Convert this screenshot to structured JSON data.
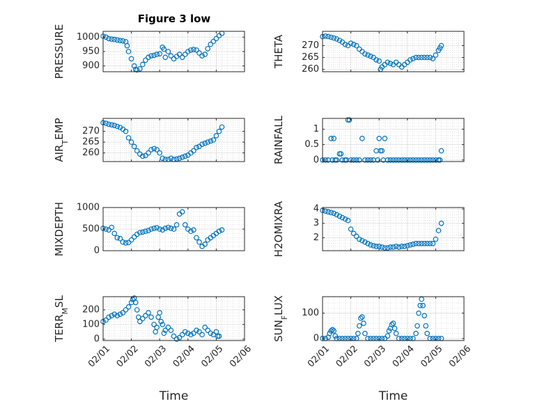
{
  "chart_data": [
    {
      "type": "scatter",
      "title": "Figure 3 low",
      "ylabel": "PRESSURE",
      "xlabel": "",
      "x_ticks": [
        "02/01",
        "02/02",
        "02/03",
        "02/04",
        "02/05",
        "02/06"
      ],
      "show_x_tick_labels": false,
      "xlim": [
        0,
        5
      ],
      "ylim": [
        880,
        1020
      ],
      "yticks": [
        900,
        950,
        1000
      ],
      "grid": true,
      "color": "#0072BD",
      "series": [
        {
          "x": [
            0.0,
            0.1,
            0.2,
            0.3,
            0.4,
            0.5,
            0.6,
            0.7,
            0.8,
            0.85,
            0.9,
            1.0,
            1.1,
            1.15,
            1.2,
            1.3,
            1.4,
            1.5,
            1.6,
            1.7,
            1.8,
            1.9,
            2.0,
            2.1,
            2.15,
            2.2,
            2.3,
            2.4,
            2.5,
            2.6,
            2.7,
            2.8,
            2.9,
            3.0,
            3.1,
            3.2,
            3.3,
            3.4,
            3.5,
            3.6,
            3.7,
            3.8,
            3.9,
            4.0,
            4.1,
            4.2
          ],
          "y": [
            1003,
            1000,
            995,
            993,
            992,
            990,
            988,
            987,
            984,
            970,
            950,
            925,
            900,
            888,
            886,
            890,
            905,
            920,
            930,
            935,
            937,
            940,
            942,
            965,
            958,
            930,
            950,
            935,
            925,
            933,
            940,
            930,
            940,
            950,
            955,
            957,
            955,
            945,
            935,
            940,
            960,
            975,
            985,
            995,
            1005,
            1013
          ]
        }
      ]
    },
    {
      "type": "scatter",
      "title": "",
      "ylabel": "THETA",
      "xlabel": "",
      "x_ticks": [
        "02/01",
        "02/02",
        "02/03",
        "02/04",
        "02/05",
        "02/06"
      ],
      "show_x_tick_labels": false,
      "xlim": [
        0,
        5
      ],
      "ylim": [
        259,
        276
      ],
      "yticks": [
        260,
        265,
        270
      ],
      "grid": true,
      "color": "#0072BD",
      "series": [
        {
          "x": [
            0.0,
            0.1,
            0.2,
            0.3,
            0.4,
            0.5,
            0.6,
            0.7,
            0.8,
            0.9,
            1.0,
            1.1,
            1.2,
            1.3,
            1.4,
            1.5,
            1.6,
            1.7,
            1.8,
            1.9,
            2.0,
            2.05,
            2.1,
            2.2,
            2.3,
            2.4,
            2.5,
            2.6,
            2.7,
            2.8,
            2.9,
            3.0,
            3.1,
            3.2,
            3.3,
            3.4,
            3.5,
            3.6,
            3.7,
            3.8,
            3.9,
            4.0,
            4.1,
            4.15,
            4.2
          ],
          "y": [
            273.8,
            274,
            273.8,
            273.5,
            273.2,
            272.8,
            272.2,
            271.5,
            270.5,
            270,
            271,
            270.5,
            270,
            268.5,
            267.5,
            266.5,
            266,
            265.5,
            265,
            264,
            263.5,
            260,
            261,
            262,
            263,
            262.5,
            262,
            263,
            262,
            261,
            262,
            263,
            264,
            264.5,
            265,
            265,
            265,
            265,
            265,
            265,
            264.5,
            266,
            268,
            269,
            270
          ]
        }
      ]
    },
    {
      "type": "scatter",
      "title": "",
      "ylabel": "AIR_TEMP",
      "xlabel": "",
      "x_ticks": [
        "02/01",
        "02/02",
        "02/03",
        "02/04",
        "02/05",
        "02/06"
      ],
      "show_x_tick_labels": false,
      "xlim": [
        0,
        5
      ],
      "ylim": [
        256,
        276
      ],
      "yticks": [
        260,
        265,
        270
      ],
      "grid": true,
      "color": "#0072BD",
      "series": [
        {
          "x": [
            0.0,
            0.1,
            0.2,
            0.3,
            0.4,
            0.5,
            0.6,
            0.7,
            0.8,
            0.9,
            1.0,
            1.1,
            1.2,
            1.3,
            1.4,
            1.5,
            1.6,
            1.7,
            1.8,
            1.9,
            2.0,
            2.1,
            2.2,
            2.3,
            2.4,
            2.5,
            2.6,
            2.7,
            2.8,
            2.9,
            3.0,
            3.1,
            3.2,
            3.3,
            3.4,
            3.5,
            3.6,
            3.7,
            3.8,
            3.9,
            4.0,
            4.1,
            4.2
          ],
          "y": [
            274,
            273.7,
            273.3,
            273,
            272.7,
            272.3,
            271.8,
            271,
            270,
            267,
            265,
            263,
            261,
            259.5,
            258.5,
            258.8,
            260,
            261.5,
            262,
            261.5,
            260,
            257.5,
            257,
            257,
            257.5,
            257,
            257.2,
            257.5,
            258,
            258.5,
            259,
            260,
            261,
            262.5,
            263,
            264,
            264.5,
            265,
            265.5,
            266,
            268,
            270,
            272
          ]
        }
      ]
    },
    {
      "type": "scatter",
      "title": "",
      "ylabel": "RAINFALL",
      "xlabel": "",
      "x_ticks": [
        "02/01",
        "02/02",
        "02/03",
        "02/04",
        "02/05",
        "02/06"
      ],
      "show_x_tick_labels": false,
      "xlim": [
        0,
        5
      ],
      "ylim": [
        -0.05,
        1.35
      ],
      "yticks": [
        0,
        0.5,
        1
      ],
      "grid": true,
      "color": "#0072BD",
      "series": [
        {
          "x": [
            0.0,
            0.1,
            0.2,
            0.3,
            0.35,
            0.4,
            0.45,
            0.5,
            0.6,
            0.65,
            0.7,
            0.8,
            0.85,
            0.9,
            0.95,
            1.0,
            1.1,
            1.2,
            1.3,
            1.4,
            1.5,
            1.6,
            1.7,
            1.8,
            1.9,
            1.95,
            2.0,
            2.05,
            2.1,
            2.15,
            2.2,
            2.3,
            2.4,
            2.5,
            2.6,
            2.7,
            2.8,
            2.9,
            3.0,
            3.1,
            3.2,
            3.3,
            3.4,
            3.5,
            3.6,
            3.7,
            3.8,
            3.9,
            4.0,
            4.1,
            4.15,
            4.2
          ],
          "y": [
            0,
            0,
            0,
            0.7,
            0,
            0.7,
            0,
            0,
            0.2,
            0.2,
            0,
            0,
            0,
            1.3,
            1.3,
            0,
            0,
            0,
            0,
            0.7,
            0,
            0,
            0,
            0,
            0.3,
            0,
            0.7,
            0.3,
            0.3,
            0,
            0.7,
            0,
            0,
            0,
            0,
            0,
            0,
            0,
            0,
            0,
            0,
            0,
            0,
            0,
            0,
            0,
            0,
            0,
            0,
            0,
            0,
            0.3
          ]
        }
      ]
    },
    {
      "type": "scatter",
      "title": "",
      "ylabel": "MIXDEPTH",
      "xlabel": "",
      "x_ticks": [
        "02/01",
        "02/02",
        "02/03",
        "02/04",
        "02/05",
        "02/06"
      ],
      "show_x_tick_labels": false,
      "xlim": [
        0,
        5
      ],
      "ylim": [
        0,
        1000
      ],
      "yticks": [
        0,
        500,
        1000
      ],
      "grid": true,
      "color": "#0072BD",
      "series": [
        {
          "x": [
            0.0,
            0.1,
            0.2,
            0.3,
            0.4,
            0.5,
            0.6,
            0.7,
            0.8,
            0.9,
            1.0,
            1.1,
            1.2,
            1.3,
            1.4,
            1.5,
            1.6,
            1.7,
            1.8,
            1.9,
            2.0,
            2.1,
            2.2,
            2.3,
            2.4,
            2.5,
            2.6,
            2.7,
            2.8,
            2.9,
            3.0,
            3.1,
            3.2,
            3.3,
            3.4,
            3.5,
            3.6,
            3.7,
            3.8,
            3.9,
            4.0,
            4.1,
            4.2
          ],
          "y": [
            520,
            500,
            480,
            540,
            400,
            300,
            280,
            200,
            180,
            190,
            250,
            320,
            380,
            420,
            430,
            450,
            470,
            500,
            520,
            530,
            500,
            480,
            520,
            540,
            520,
            500,
            600,
            850,
            900,
            600,
            500,
            450,
            480,
            300,
            200,
            100,
            150,
            250,
            300,
            350,
            400,
            450,
            480
          ]
        }
      ]
    },
    {
      "type": "scatter",
      "title": "",
      "ylabel": "H2OMIXRA",
      "xlabel": "",
      "x_ticks": [
        "02/01",
        "02/02",
        "02/03",
        "02/04",
        "02/05",
        "02/06"
      ],
      "show_x_tick_labels": false,
      "xlim": [
        0,
        5
      ],
      "ylim": [
        1.1,
        4.1
      ],
      "yticks": [
        2,
        3,
        4
      ],
      "grid": true,
      "color": "#0072BD",
      "series": [
        {
          "x": [
            0.0,
            0.1,
            0.2,
            0.3,
            0.4,
            0.5,
            0.6,
            0.7,
            0.8,
            0.9,
            1.0,
            1.1,
            1.2,
            1.3,
            1.4,
            1.5,
            1.6,
            1.7,
            1.8,
            1.9,
            2.0,
            2.1,
            2.2,
            2.3,
            2.4,
            2.5,
            2.6,
            2.7,
            2.8,
            2.9,
            3.0,
            3.1,
            3.2,
            3.3,
            3.4,
            3.5,
            3.6,
            3.7,
            3.8,
            3.9,
            4.0,
            4.1,
            4.2
          ],
          "y": [
            3.9,
            3.85,
            3.8,
            3.75,
            3.7,
            3.6,
            3.5,
            3.4,
            3.3,
            3.2,
            2.6,
            2.3,
            2.1,
            1.9,
            1.8,
            1.7,
            1.6,
            1.5,
            1.45,
            1.4,
            1.4,
            1.35,
            1.3,
            1.3,
            1.35,
            1.35,
            1.4,
            1.35,
            1.4,
            1.4,
            1.45,
            1.5,
            1.55,
            1.6,
            1.6,
            1.6,
            1.6,
            1.6,
            1.6,
            1.6,
            1.9,
            2.5,
            3.0
          ]
        }
      ]
    },
    {
      "type": "scatter",
      "title": "",
      "ylabel": "TERR_MSL",
      "xlabel": "Time",
      "x_ticks": [
        "02/01",
        "02/02",
        "02/03",
        "02/04",
        "02/05",
        "02/06"
      ],
      "show_x_tick_labels": true,
      "xlim": [
        0,
        5
      ],
      "ylim": [
        -10,
        290
      ],
      "yticks": [
        0,
        100,
        200
      ],
      "grid": true,
      "color": "#0072BD",
      "series": [
        {
          "x": [
            0.0,
            0.1,
            0.2,
            0.3,
            0.4,
            0.5,
            0.6,
            0.7,
            0.8,
            0.9,
            1.0,
            1.05,
            1.1,
            1.15,
            1.2,
            1.25,
            1.3,
            1.4,
            1.5,
            1.6,
            1.7,
            1.8,
            1.85,
            1.9,
            1.95,
            2.0,
            2.05,
            2.1,
            2.15,
            2.2,
            2.3,
            2.4,
            2.5,
            2.6,
            2.7,
            2.8,
            2.9,
            3.0,
            3.1,
            3.2,
            3.3,
            3.4,
            3.5,
            3.6,
            3.7,
            3.8,
            3.9,
            4.0,
            4.05,
            4.1
          ],
          "y": [
            120,
            130,
            150,
            160,
            170,
            160,
            170,
            180,
            200,
            220,
            250,
            270,
            280,
            250,
            200,
            150,
            120,
            140,
            160,
            180,
            150,
            100,
            50,
            80,
            150,
            180,
            120,
            100,
            40,
            60,
            80,
            60,
            20,
            0,
            10,
            30,
            50,
            40,
            30,
            40,
            60,
            50,
            30,
            80,
            60,
            40,
            30,
            50,
            20,
            20
          ]
        }
      ]
    },
    {
      "type": "scatter",
      "title": "",
      "ylabel": "SUN_FLUX",
      "xlabel": "Time",
      "x_ticks": [
        "02/01",
        "02/02",
        "02/03",
        "02/04",
        "02/05",
        "02/06"
      ],
      "show_x_tick_labels": true,
      "xlim": [
        0,
        5
      ],
      "ylim": [
        -8,
        165
      ],
      "yticks": [
        0,
        100
      ],
      "grid": true,
      "color": "#0072BD",
      "series": [
        {
          "x": [
            0.0,
            0.1,
            0.2,
            0.25,
            0.3,
            0.35,
            0.4,
            0.45,
            0.5,
            0.6,
            0.7,
            0.8,
            0.9,
            1.0,
            1.1,
            1.2,
            1.25,
            1.3,
            1.35,
            1.4,
            1.45,
            1.5,
            1.6,
            1.7,
            1.8,
            1.9,
            2.0,
            2.1,
            2.2,
            2.3,
            2.35,
            2.4,
            2.45,
            2.5,
            2.55,
            2.6,
            2.7,
            2.8,
            2.9,
            3.0,
            3.1,
            3.2,
            3.3,
            3.35,
            3.4,
            3.45,
            3.5,
            3.55,
            3.6,
            3.65,
            3.7,
            3.8,
            3.9,
            4.0,
            4.1,
            4.2
          ],
          "y": [
            0,
            0,
            5,
            20,
            30,
            35,
            30,
            10,
            0,
            0,
            0,
            0,
            0,
            0,
            0,
            0,
            20,
            50,
            80,
            85,
            60,
            20,
            0,
            0,
            0,
            0,
            0,
            0,
            0,
            10,
            30,
            40,
            55,
            60,
            40,
            20,
            0,
            0,
            0,
            0,
            0,
            0,
            20,
            50,
            100,
            130,
            155,
            130,
            90,
            50,
            20,
            0,
            0,
            0,
            0,
            0
          ]
        }
      ]
    }
  ]
}
